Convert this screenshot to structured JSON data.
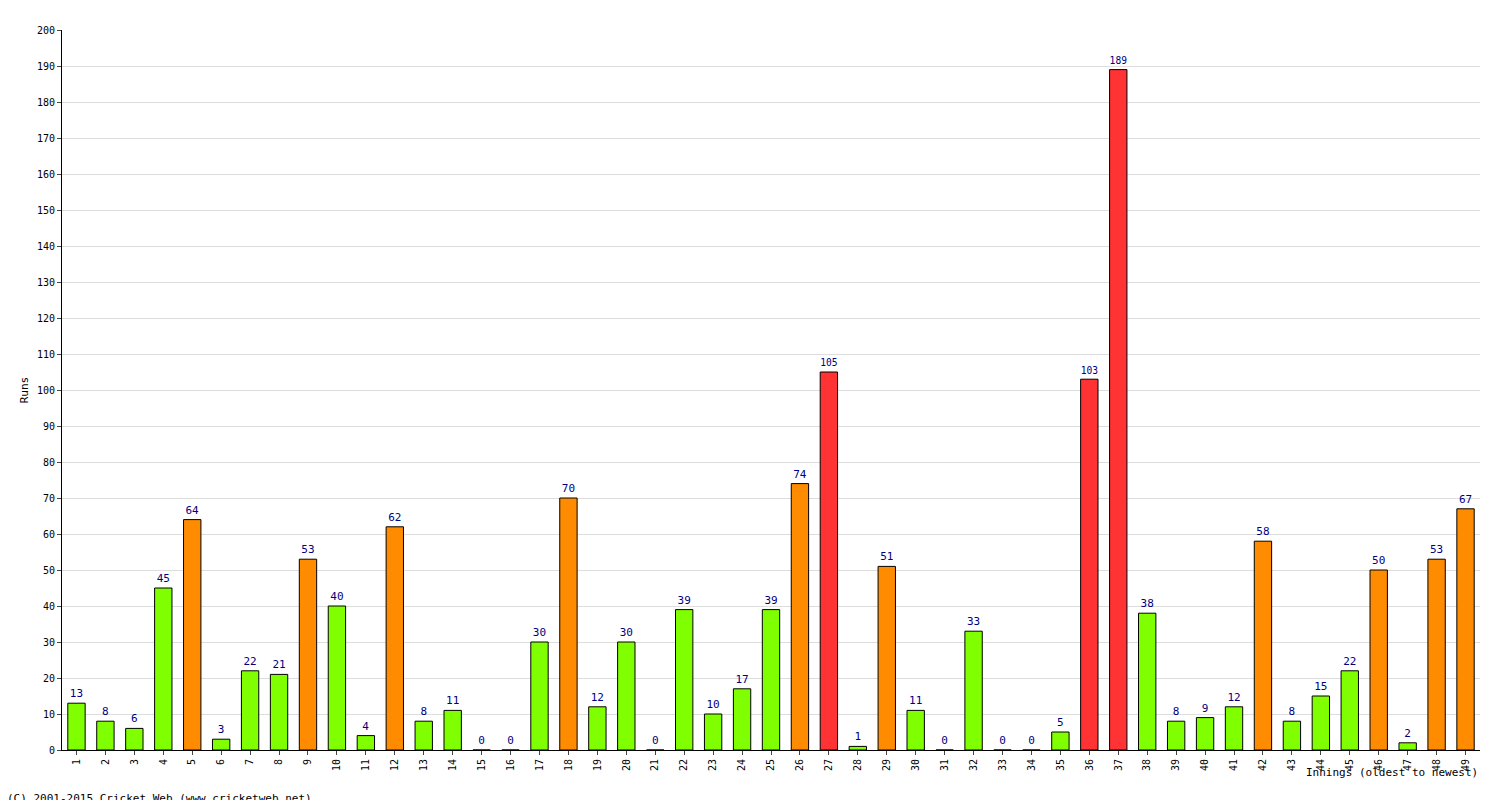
{
  "chart_data": {
    "type": "bar",
    "y_label": "Runs",
    "x_label": "Innings (oldest to newest)",
    "annotations": [
      "(C) 2001-2015 Cricket Web (www.cricketweb.net)"
    ],
    "categories": [
      "1",
      "2",
      "3",
      "4",
      "5",
      "6",
      "7",
      "8",
      "9",
      "10",
      "11",
      "12",
      "13",
      "14",
      "15",
      "16",
      "17",
      "18",
      "19",
      "20",
      "21",
      "22",
      "23",
      "24",
      "25",
      "26",
      "27",
      "28",
      "29",
      "30",
      "31",
      "32",
      "33",
      "34",
      "35",
      "36",
      "37",
      "38",
      "39",
      "40",
      "41",
      "42",
      "43",
      "44",
      "45",
      "46",
      "47",
      "48",
      "49"
    ],
    "values": [
      13,
      8,
      6,
      45,
      64,
      3,
      22,
      21,
      53,
      40,
      4,
      62,
      8,
      11,
      0,
      0,
      30,
      70,
      12,
      30,
      0,
      39,
      10,
      17,
      39,
      74,
      105,
      1,
      51,
      11,
      0,
      33,
      0,
      0,
      5,
      103,
      189,
      38,
      8,
      9,
      12,
      58,
      8,
      15,
      22,
      50,
      2,
      53,
      67
    ],
    "colors": [
      "#80ff00",
      "#80ff00",
      "#80ff00",
      "#80ff00",
      "#ff8c00",
      "#80ff00",
      "#80ff00",
      "#80ff00",
      "#ff8c00",
      "#80ff00",
      "#80ff00",
      "#ff8c00",
      "#80ff00",
      "#80ff00",
      "#80ff00",
      "#80ff00",
      "#80ff00",
      "#ff8c00",
      "#80ff00",
      "#80ff00",
      "#80ff00",
      "#80ff00",
      "#80ff00",
      "#80ff00",
      "#80ff00",
      "#ff8c00",
      "#ff3333",
      "#80ff00",
      "#ff8c00",
      "#80ff00",
      "#80ff00",
      "#80ff00",
      "#80ff00",
      "#80ff00",
      "#80ff00",
      "#ff3333",
      "#ff3333",
      "#80ff00",
      "#80ff00",
      "#80ff00",
      "#80ff00",
      "#ff8c00",
      "#80ff00",
      "#80ff00",
      "#80ff00",
      "#ff8c00",
      "#80ff00",
      "#ff8c00",
      "#ff8c00"
    ],
    "ylim": [
      0,
      200
    ],
    "yticks": [
      0,
      10,
      20,
      30,
      40,
      50,
      60,
      70,
      80,
      90,
      100,
      110,
      120,
      130,
      140,
      150,
      160,
      170,
      180,
      190,
      200
    ],
    "grid": true,
    "data_labels": true
  }
}
